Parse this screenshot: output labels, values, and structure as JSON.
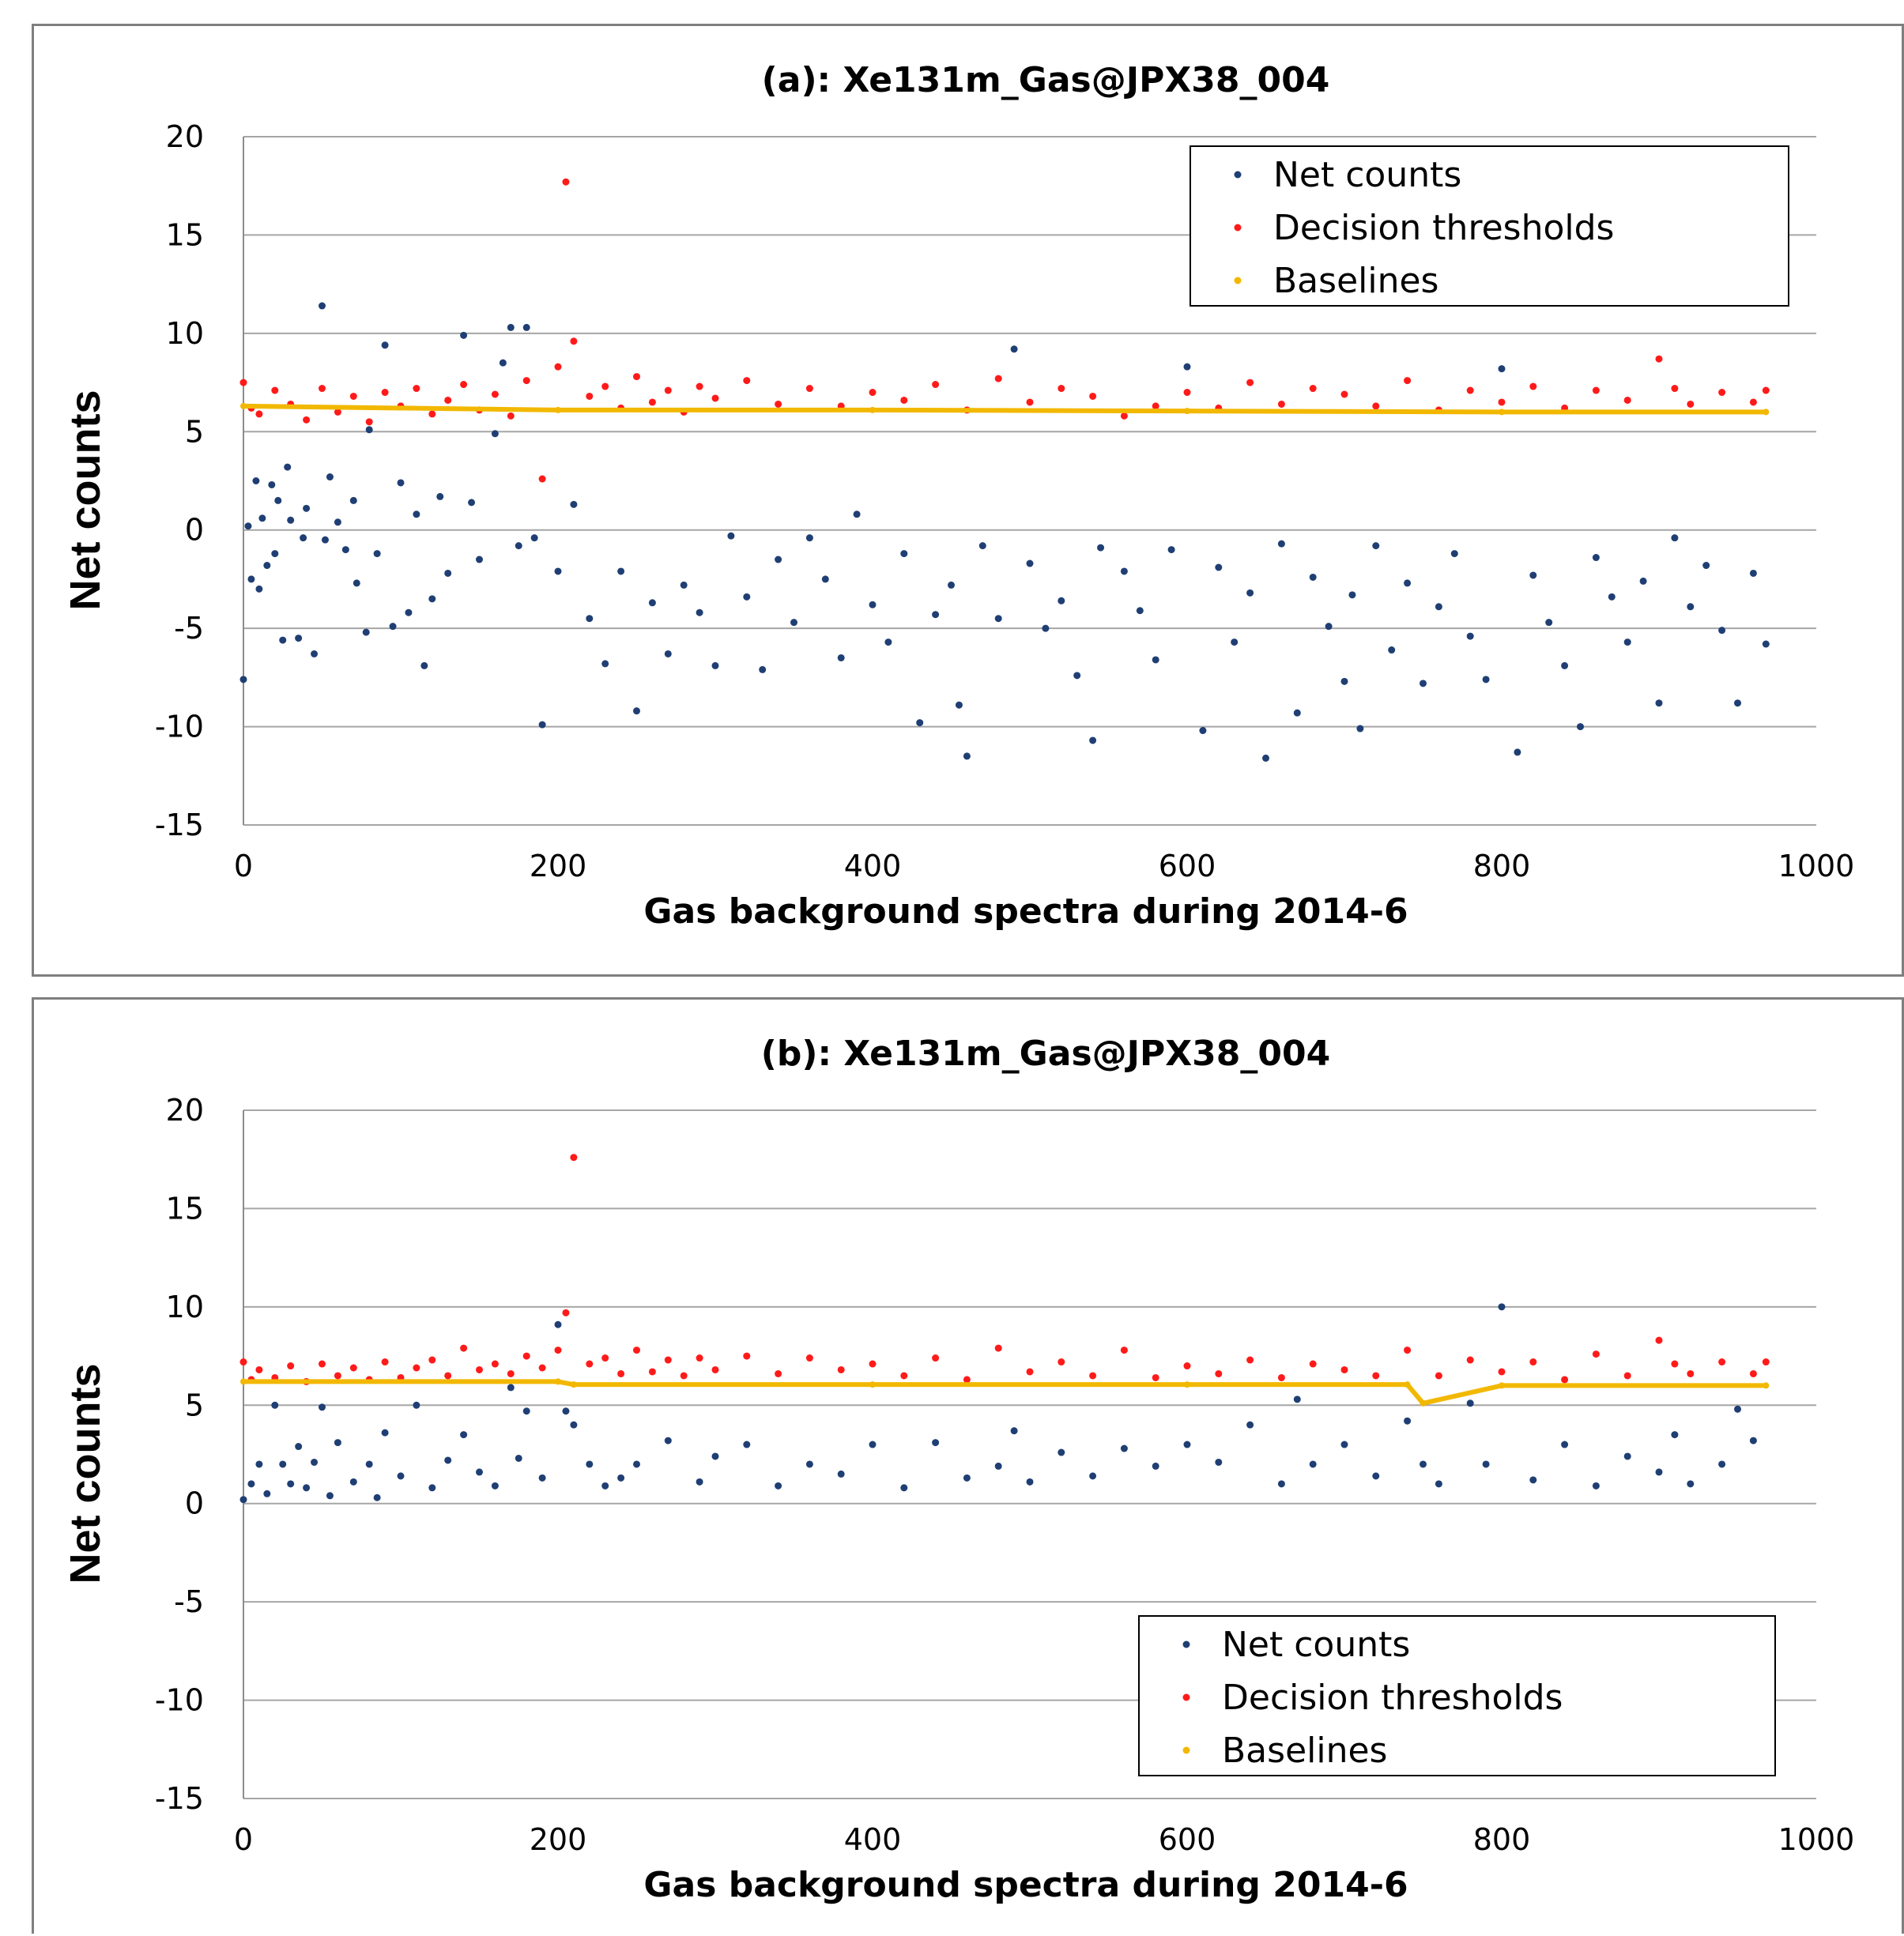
{
  "colors": {
    "net": "#1f3f74",
    "threshold": "#ff1a1a",
    "baseline": "#f2b800",
    "grid": "#a6a6a6"
  },
  "chart_data": [
    {
      "type": "scatter",
      "title": "(a): Xe131m_Gas@JPX38_004",
      "xlabel": "Gas background spectra during 2014-6",
      "ylabel": "Net counts",
      "xlim": [
        0,
        1000
      ],
      "ylim": [
        -15,
        20
      ],
      "xticks": [
        "0",
        "200",
        "400",
        "600",
        "800",
        "1000"
      ],
      "yticks": [
        "20",
        "15",
        "10",
        "5",
        "0",
        "-5",
        "-10",
        "-15"
      ],
      "grid": true,
      "legend": {
        "position": "top-right",
        "entries": [
          "Net counts",
          "Decision thresholds",
          "Baselines"
        ]
      },
      "series": [
        {
          "name": "Net counts",
          "x": [
            0,
            3,
            5,
            8,
            10,
            12,
            15,
            18,
            20,
            22,
            25,
            28,
            30,
            35,
            38,
            40,
            45,
            50,
            52,
            55,
            60,
            65,
            70,
            72,
            78,
            80,
            85,
            90,
            95,
            100,
            105,
            110,
            115,
            120,
            125,
            130,
            140,
            145,
            150,
            160,
            165,
            170,
            175,
            180,
            185,
            190,
            200,
            210,
            220,
            230,
            240,
            250,
            260,
            270,
            280,
            290,
            300,
            310,
            320,
            330,
            340,
            350,
            360,
            370,
            380,
            390,
            400,
            410,
            420,
            430,
            440,
            450,
            455,
            460,
            470,
            480,
            490,
            500,
            510,
            520,
            530,
            540,
            545,
            560,
            570,
            580,
            590,
            600,
            610,
            620,
            630,
            640,
            650,
            660,
            670,
            680,
            690,
            700,
            705,
            710,
            720,
            730,
            740,
            750,
            760,
            770,
            780,
            790,
            800,
            810,
            820,
            830,
            840,
            850,
            860,
            870,
            880,
            890,
            900,
            910,
            920,
            930,
            940,
            950,
            960,
            968
          ],
          "y": [
            -7.6,
            0.2,
            -2.5,
            2.5,
            -3,
            0.6,
            -1.8,
            2.3,
            -1.2,
            1.5,
            -5.6,
            3.2,
            0.5,
            -5.5,
            -0.4,
            1.1,
            -6.3,
            11.4,
            -0.5,
            2.7,
            0.4,
            -1,
            1.5,
            -2.7,
            -5.2,
            5.1,
            -1.2,
            9.4,
            -4.9,
            2.4,
            -4.2,
            0.8,
            -6.9,
            -3.5,
            1.7,
            -2.2,
            9.9,
            1.4,
            -1.5,
            4.9,
            8.5,
            10.3,
            -0.8,
            10.3,
            -0.4,
            -9.9,
            -2.1,
            1.3,
            -4.5,
            -6.8,
            -2.1,
            -9.2,
            -3.7,
            -6.3,
            -2.8,
            -4.2,
            -6.9,
            -0.3,
            -3.4,
            -7.1,
            -1.5,
            -4.7,
            -0.4,
            -2.5,
            -6.5,
            0.8,
            -3.8,
            -5.7,
            -1.2,
            -9.8,
            -4.3,
            -2.8,
            -8.9,
            -11.5,
            -0.8,
            -4.5,
            9.2,
            -1.7,
            -5,
            -3.6,
            -7.4,
            -10.7,
            -0.9,
            -2.1,
            -4.1,
            -6.6,
            -1,
            8.3,
            -10.2,
            -1.9,
            -5.7,
            -3.2,
            -11.6,
            -0.7,
            -9.3,
            -2.4,
            -4.9,
            -7.7,
            -3.3,
            -10.1,
            -0.8,
            -6.1,
            -2.7,
            -7.8,
            -3.9,
            -1.2,
            -5.4,
            -7.6,
            8.2,
            -11.3,
            -2.3,
            -4.7,
            -6.9,
            -10,
            -1.4,
            -3.4,
            -5.7,
            -2.6,
            -8.8,
            -0.4,
            -3.9,
            -1.8,
            -5.1,
            -8.8,
            -2.2,
            -5.8
          ]
        },
        {
          "name": "Decision thresholds",
          "x": [
            0,
            5,
            10,
            20,
            30,
            40,
            50,
            60,
            70,
            80,
            90,
            100,
            110,
            120,
            130,
            140,
            150,
            160,
            170,
            180,
            190,
            200,
            205,
            210,
            220,
            230,
            240,
            250,
            260,
            270,
            280,
            290,
            300,
            320,
            340,
            360,
            380,
            400,
            420,
            440,
            460,
            480,
            500,
            520,
            540,
            560,
            580,
            600,
            620,
            640,
            660,
            680,
            700,
            720,
            740,
            760,
            780,
            800,
            820,
            840,
            860,
            880,
            900,
            910,
            920,
            940,
            960,
            968
          ],
          "y": [
            7.5,
            6.2,
            5.9,
            7.1,
            6.4,
            5.6,
            7.2,
            6,
            6.8,
            5.5,
            7,
            6.3,
            7.2,
            5.9,
            6.6,
            7.4,
            6.1,
            6.9,
            5.8,
            7.6,
            2.6,
            8.3,
            17.7,
            9.6,
            6.8,
            7.3,
            6.2,
            7.8,
            6.5,
            7.1,
            6,
            7.3,
            6.7,
            7.6,
            6.4,
            7.2,
            6.3,
            7,
            6.6,
            7.4,
            6.1,
            7.7,
            6.5,
            7.2,
            6.8,
            5.8,
            6.3,
            7,
            6.2,
            7.5,
            6.4,
            7.2,
            6.9,
            6.3,
            7.6,
            6.1,
            7.1,
            6.5,
            7.3,
            6.2,
            7.1,
            6.6,
            8.7,
            7.2,
            6.4,
            7,
            6.5,
            7.1
          ]
        },
        {
          "name": "Baselines",
          "x": [
            0,
            200,
            400,
            600,
            800,
            968
          ],
          "y": [
            6.3,
            6.1,
            6.1,
            6.05,
            6,
            6
          ]
        }
      ]
    },
    {
      "type": "scatter",
      "title": "(b): Xe131m_Gas@JPX38_004",
      "xlabel": "Gas background spectra during 2014-6",
      "ylabel": "Net counts",
      "xlim": [
        0,
        1000
      ],
      "ylim": [
        -15,
        20
      ],
      "xticks": [
        "0",
        "200",
        "400",
        "600",
        "800",
        "1000"
      ],
      "yticks": [
        "20",
        "15",
        "10",
        "5",
        "0",
        "-5",
        "-10",
        "-15"
      ],
      "grid": true,
      "legend": {
        "position": "bottom-right",
        "entries": [
          "Net counts",
          "Decision thresholds",
          "Baselines"
        ]
      },
      "series": [
        {
          "name": "Net counts",
          "x": [
            0,
            5,
            10,
            15,
            20,
            25,
            30,
            35,
            40,
            45,
            50,
            55,
            60,
            70,
            80,
            85,
            90,
            100,
            110,
            120,
            130,
            140,
            150,
            160,
            170,
            175,
            180,
            190,
            200,
            205,
            210,
            220,
            230,
            240,
            250,
            270,
            290,
            300,
            320,
            340,
            360,
            380,
            400,
            420,
            440,
            460,
            480,
            490,
            500,
            520,
            540,
            560,
            580,
            600,
            620,
            640,
            660,
            670,
            680,
            700,
            720,
            740,
            750,
            760,
            780,
            790,
            800,
            820,
            840,
            860,
            880,
            900,
            910,
            920,
            940,
            950,
            960
          ],
          "y": [
            0.2,
            1,
            2,
            0.5,
            5,
            2,
            1,
            2.9,
            0.8,
            2.1,
            4.9,
            0.4,
            3.1,
            1.1,
            2,
            0.3,
            3.6,
            1.4,
            5,
            0.8,
            2.2,
            3.5,
            1.6,
            0.9,
            5.9,
            2.3,
            4.7,
            1.3,
            9.1,
            4.7,
            4,
            2,
            0.9,
            1.3,
            2,
            3.2,
            1.1,
            2.4,
            3,
            0.9,
            2,
            1.5,
            3,
            0.8,
            3.1,
            1.3,
            1.9,
            3.7,
            1.1,
            2.6,
            1.4,
            2.8,
            1.9,
            3,
            2.1,
            4,
            1,
            5.3,
            2,
            3,
            1.4,
            4.2,
            2,
            1,
            5.1,
            2,
            10,
            1.2,
            3,
            0.9,
            2.4,
            1.6,
            3.5,
            1,
            2,
            4.8,
            3.2
          ]
        },
        {
          "name": "Decision thresholds",
          "x": [
            0,
            5,
            10,
            20,
            30,
            40,
            50,
            60,
            70,
            80,
            90,
            100,
            110,
            120,
            130,
            140,
            150,
            160,
            170,
            180,
            190,
            200,
            205,
            210,
            220,
            230,
            240,
            250,
            260,
            270,
            280,
            290,
            300,
            320,
            340,
            360,
            380,
            400,
            420,
            440,
            460,
            480,
            500,
            520,
            540,
            560,
            580,
            600,
            620,
            640,
            660,
            680,
            700,
            720,
            740,
            760,
            780,
            800,
            820,
            840,
            860,
            880,
            900,
            910,
            920,
            940,
            960,
            968
          ],
          "y": [
            7.2,
            6.3,
            6.8,
            6.4,
            7,
            6.2,
            7.1,
            6.5,
            6.9,
            6.3,
            7.2,
            6.4,
            6.9,
            7.3,
            6.5,
            7.9,
            6.8,
            7.1,
            6.6,
            7.5,
            6.9,
            7.8,
            9.7,
            17.6,
            7.1,
            7.4,
            6.6,
            7.8,
            6.7,
            7.3,
            6.5,
            7.4,
            6.8,
            7.5,
            6.6,
            7.4,
            6.8,
            7.1,
            6.5,
            7.4,
            6.3,
            7.9,
            6.7,
            7.2,
            6.5,
            7.8,
            6.4,
            7,
            6.6,
            7.3,
            6.4,
            7.1,
            6.8,
            6.5,
            7.8,
            6.5,
            7.3,
            6.7,
            7.2,
            6.3,
            7.6,
            6.5,
            8.3,
            7.1,
            6.6,
            7.2,
            6.6,
            7.2
          ]
        },
        {
          "name": "Baselines",
          "x": [
            0,
            200,
            210,
            400,
            600,
            740,
            750,
            800,
            968
          ],
          "y": [
            6.2,
            6.2,
            6.05,
            6.05,
            6.05,
            6.05,
            5.1,
            6,
            6
          ]
        }
      ]
    }
  ]
}
